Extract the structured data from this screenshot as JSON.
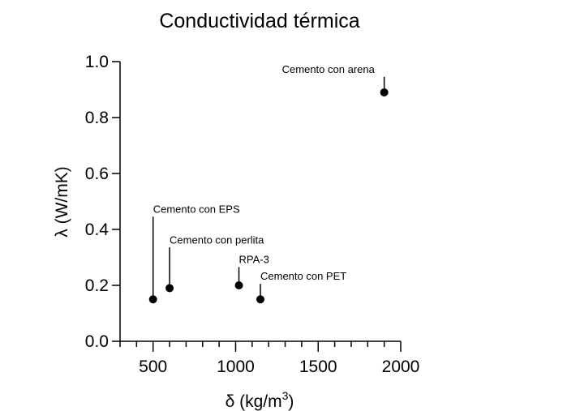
{
  "chart_data": {
    "type": "scatter",
    "title": "Conductividad térmica",
    "xlabel": "δ (kg/m",
    "xlabel_sup": "3",
    "xlabel_end": ")",
    "ylabel": "λ (W/mK)",
    "xlim": [
      300,
      2000
    ],
    "ylim": [
      0,
      1.0
    ],
    "x_ticks": [
      500,
      1000,
      1500,
      2000
    ],
    "x_minor_ticks": [
      300,
      400,
      600,
      700,
      800,
      900,
      1100,
      1200,
      1300,
      1400,
      1600,
      1700,
      1800,
      1900
    ],
    "y_ticks": [
      "0.0",
      "0.2",
      "0.4",
      "0.6",
      "0.8",
      "1.0"
    ],
    "grid": false,
    "points": [
      {
        "label": "Cemento con EPS",
        "x": 500,
        "y": 0.15,
        "label_y": 0.46
      },
      {
        "label": "Cemento con perlita",
        "x": 600,
        "y": 0.19,
        "label_y": 0.35
      },
      {
        "label": "RPA-3",
        "x": 1020,
        "y": 0.2,
        "label_y": 0.28
      },
      {
        "label": "Cemento con PET",
        "x": 1150,
        "y": 0.15,
        "label_y": 0.22
      },
      {
        "label": "Cemento con arena",
        "x": 1900,
        "y": 0.89,
        "label_y": 0.96
      }
    ]
  }
}
